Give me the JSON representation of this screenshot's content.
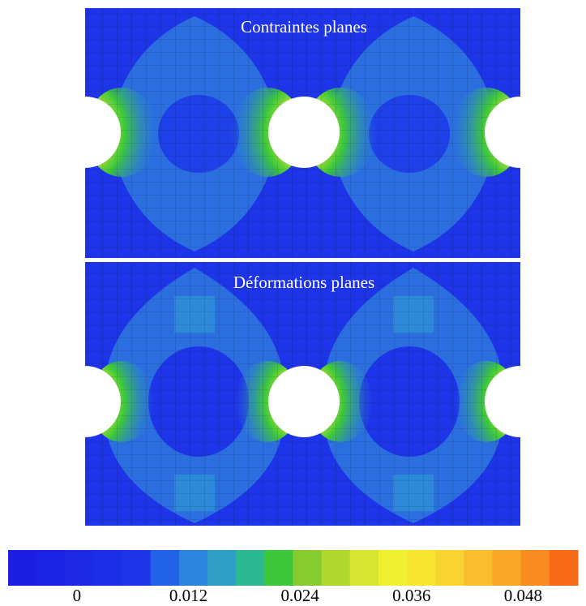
{
  "panels": [
    {
      "title": "Contraintes planes"
    },
    {
      "title": "Déformations planes"
    }
  ],
  "colorbar": {
    "range": [
      -0.0074,
      0.0539
    ],
    "colors": [
      "#1c1ee0",
      "#1c22e2",
      "#1c28e4",
      "#1c2ee6",
      "#1e34e8",
      "#2262e6",
      "#2c84dc",
      "#2ea0c4",
      "#2cb890",
      "#3cc83a",
      "#86cc2e",
      "#b2d830",
      "#d6e632",
      "#f0f032",
      "#f8e632",
      "#f8d430",
      "#f8be2e",
      "#f8a628",
      "#f88c20",
      "#f86a18"
    ],
    "ticks": [
      0,
      0.012,
      0.024,
      0.036,
      0.048
    ]
  }
}
